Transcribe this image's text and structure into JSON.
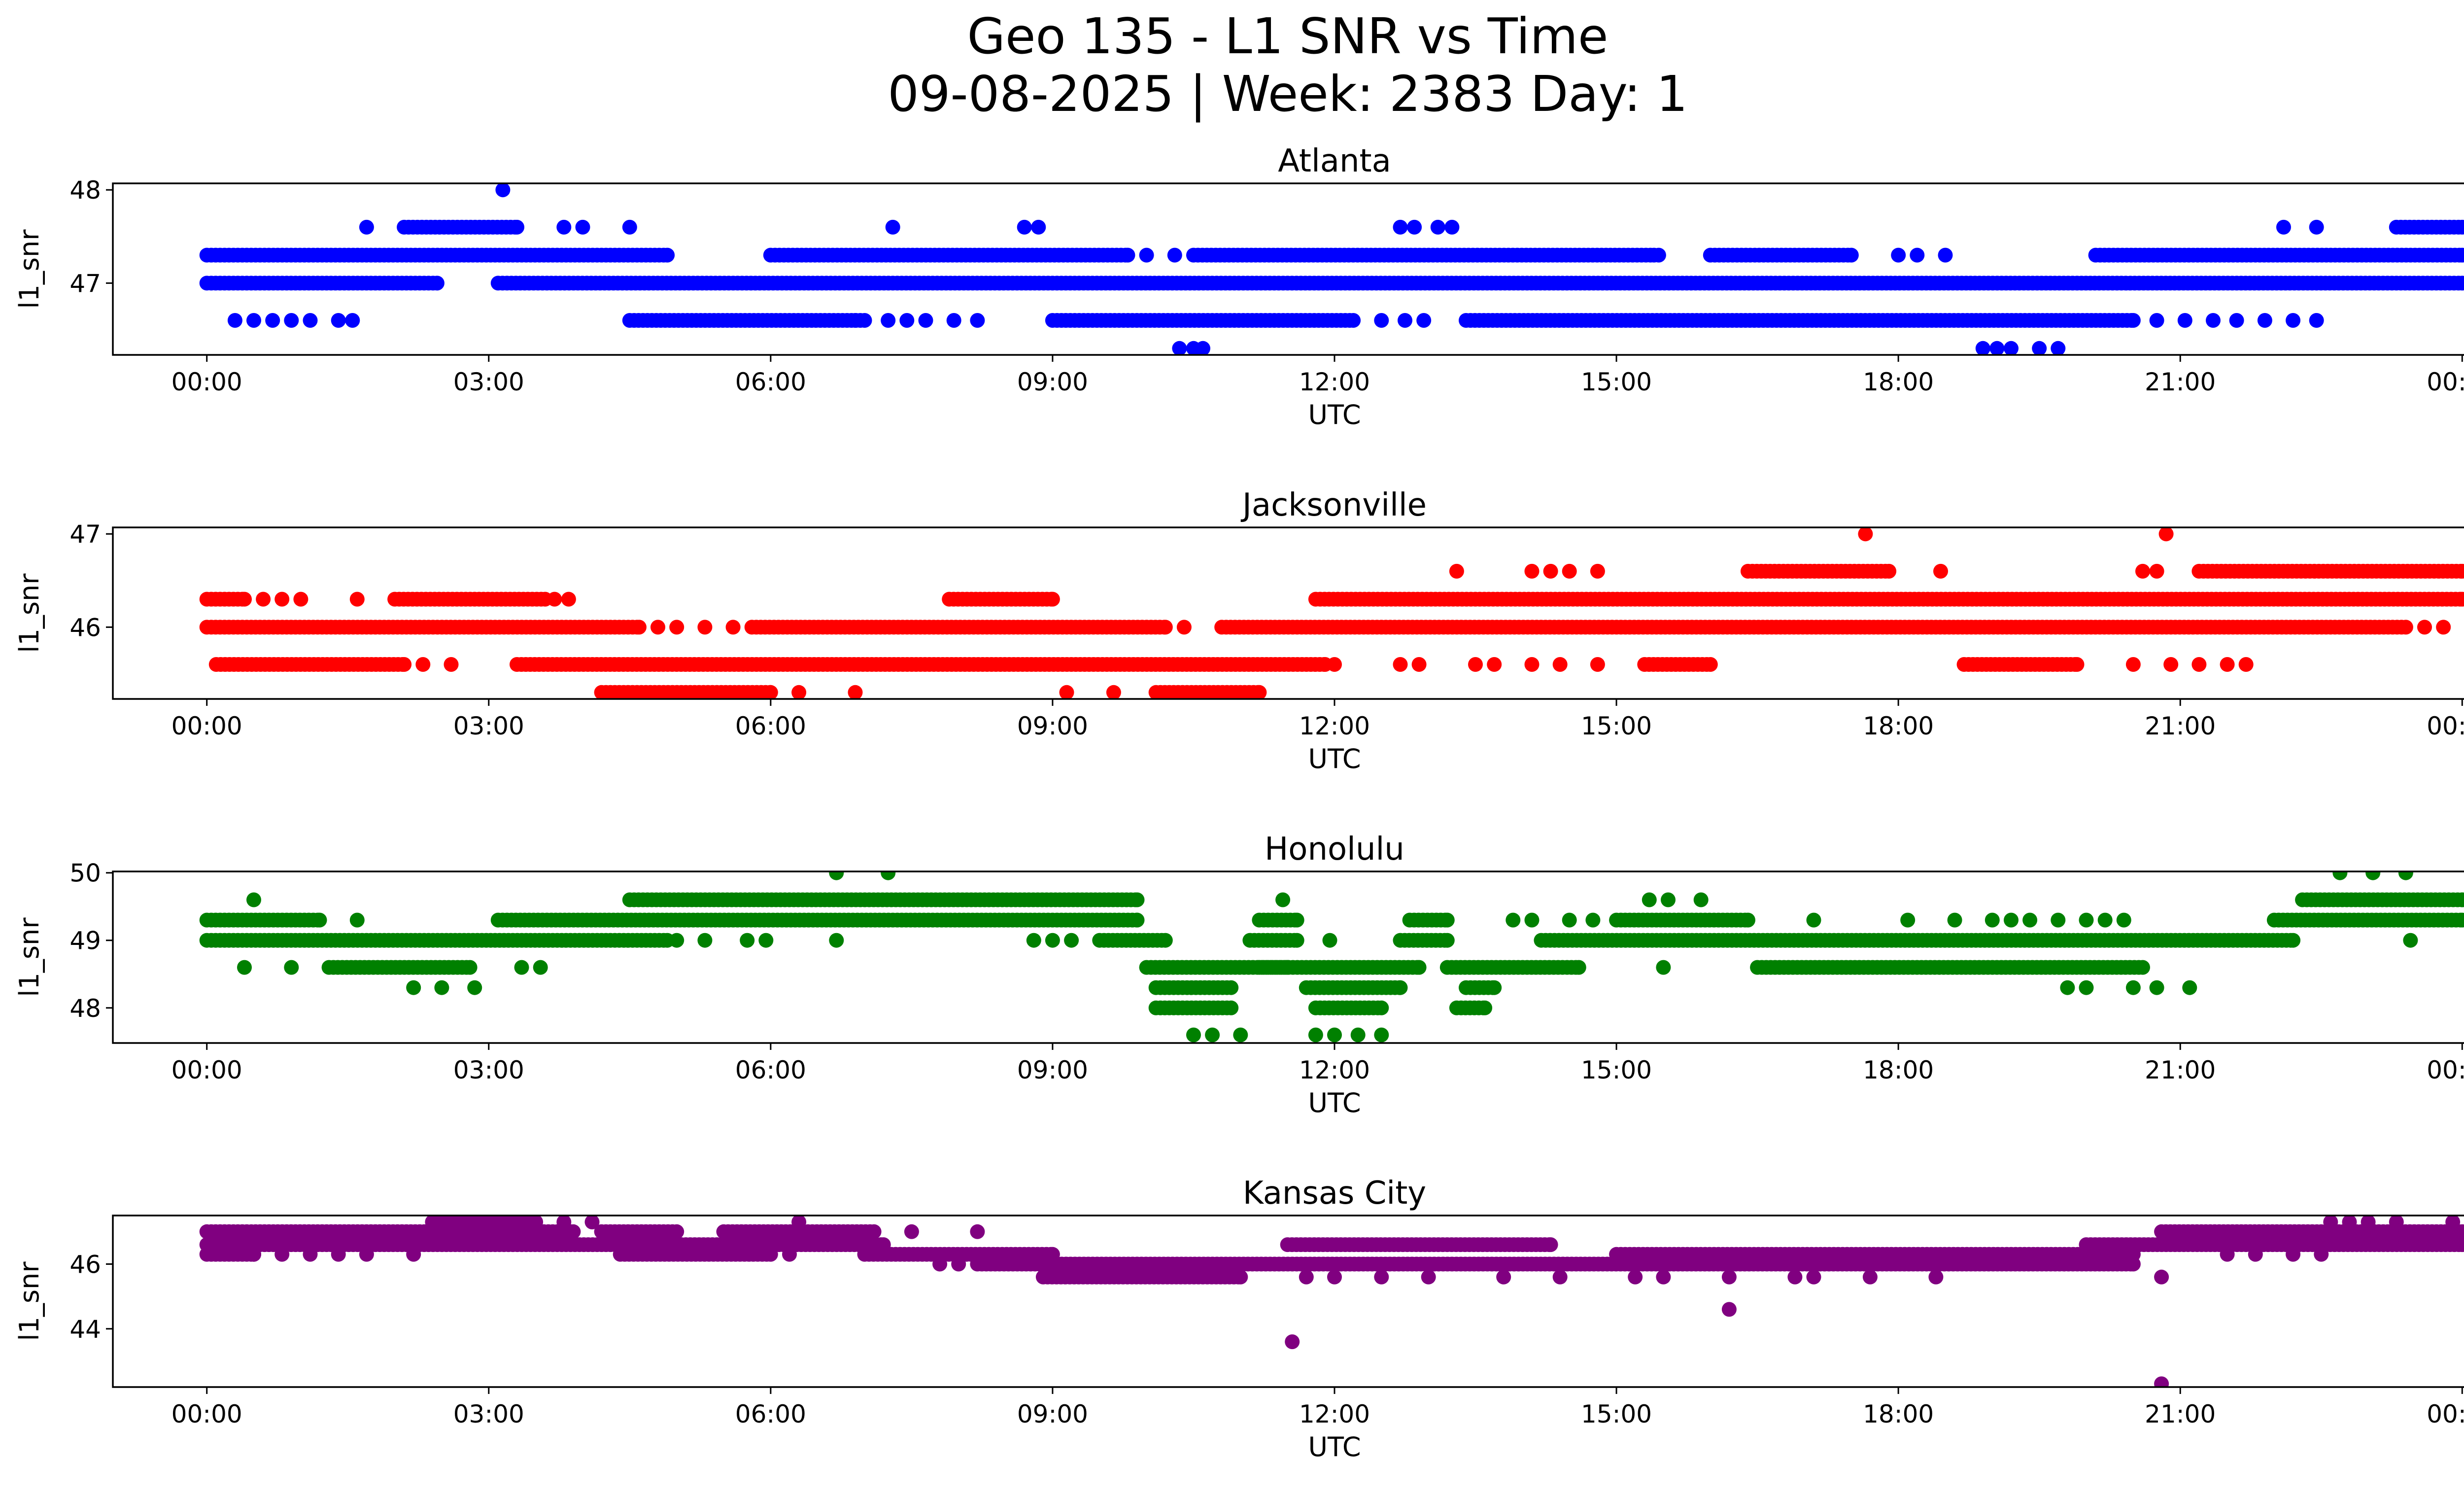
{
  "figure": {
    "title_line1": "Geo 135 - L1 SNR vs Time",
    "title_line2": "09-08-2025 | Week: 2383 Day: 1"
  },
  "chart_data": [
    {
      "type": "scatter",
      "title": "Atlanta",
      "xlabel": "UTC",
      "ylabel": "l1_snr",
      "color": "#0000ff",
      "xlim_hours": [
        -1.0,
        25.0
      ],
      "ylim": [
        46.23,
        48.07
      ],
      "x_ticks": [
        "00:00",
        "03:00",
        "06:00",
        "09:00",
        "12:00",
        "15:00",
        "18:00",
        "21:00",
        "00:00"
      ],
      "y_ticks": [
        47,
        48
      ],
      "levels": [
        46.3,
        46.6,
        47.0,
        47.3,
        47.6,
        48.0
      ],
      "bands": [
        {
          "y": 47.0,
          "ranges": [
            [
              0.0,
              2.45
            ],
            [
              3.1,
              24.0
            ]
          ]
        },
        {
          "y": 47.3,
          "ranges": [
            [
              0.0,
              4.9
            ],
            [
              6.0,
              9.8
            ],
            [
              10.5,
              15.4
            ],
            [
              16.0,
              17.5
            ],
            [
              20.1,
              24.0
            ]
          ]
        },
        {
          "y": 46.6,
          "ranges": [
            [
              4.5,
              7.0
            ],
            [
              9.0,
              12.2
            ],
            [
              13.4,
              20.5
            ]
          ]
        },
        {
          "y": 47.6,
          "ranges": [
            [
              2.1,
              3.3
            ],
            [
              23.3,
              24.0
            ]
          ]
        }
      ],
      "points": [
        [
          3.15,
          48.0
        ],
        [
          1.7,
          47.6
        ],
        [
          3.8,
          47.6
        ],
        [
          4.0,
          47.6
        ],
        [
          4.5,
          47.6
        ],
        [
          7.3,
          47.6
        ],
        [
          8.7,
          47.6
        ],
        [
          8.85,
          47.6
        ],
        [
          12.7,
          47.6
        ],
        [
          12.85,
          47.6
        ],
        [
          13.1,
          47.6
        ],
        [
          13.25,
          47.6
        ],
        [
          22.1,
          47.6
        ],
        [
          22.45,
          47.6
        ],
        [
          15.45,
          47.3
        ],
        [
          18.0,
          47.3
        ],
        [
          18.2,
          47.3
        ],
        [
          18.5,
          47.3
        ],
        [
          10.0,
          47.3
        ],
        [
          10.3,
          47.3
        ],
        [
          0.3,
          46.6
        ],
        [
          0.5,
          46.6
        ],
        [
          0.7,
          46.6
        ],
        [
          0.9,
          46.6
        ],
        [
          1.1,
          46.6
        ],
        [
          1.4,
          46.6
        ],
        [
          1.55,
          46.6
        ],
        [
          7.25,
          46.6
        ],
        [
          7.45,
          46.6
        ],
        [
          7.65,
          46.6
        ],
        [
          7.95,
          46.6
        ],
        [
          8.2,
          46.6
        ],
        [
          6.9,
          46.6
        ],
        [
          12.5,
          46.6
        ],
        [
          12.75,
          46.6
        ],
        [
          12.95,
          46.6
        ],
        [
          20.75,
          46.6
        ],
        [
          21.05,
          46.6
        ],
        [
          21.35,
          46.6
        ],
        [
          21.6,
          46.6
        ],
        [
          21.9,
          46.6
        ],
        [
          22.2,
          46.6
        ],
        [
          22.45,
          46.6
        ],
        [
          10.35,
          46.3
        ],
        [
          10.5,
          46.3
        ],
        [
          10.6,
          46.3
        ],
        [
          18.9,
          46.3
        ],
        [
          19.05,
          46.3
        ],
        [
          19.2,
          46.3
        ],
        [
          19.5,
          46.3
        ],
        [
          19.7,
          46.3
        ]
      ]
    },
    {
      "type": "scatter",
      "title": "Jacksonville",
      "xlabel": "UTC",
      "ylabel": "l1_snr",
      "color": "#ff0000",
      "xlim_hours": [
        -1.0,
        25.0
      ],
      "ylim": [
        45.23,
        47.07
      ],
      "x_ticks": [
        "00:00",
        "03:00",
        "06:00",
        "09:00",
        "12:00",
        "15:00",
        "18:00",
        "21:00",
        "00:00"
      ],
      "y_ticks": [
        46,
        47
      ],
      "levels": [
        45.3,
        45.6,
        46.0,
        46.3,
        46.6,
        47.0
      ],
      "bands": [
        {
          "y": 46.0,
          "ranges": [
            [
              0.0,
              4.6
            ],
            [
              5.8,
              10.2
            ],
            [
              10.8,
              23.4
            ]
          ]
        },
        {
          "y": 46.3,
          "ranges": [
            [
              0.0,
              0.4
            ],
            [
              2.0,
              3.6
            ],
            [
              7.9,
              9.0
            ],
            [
              11.8,
              24.0
            ]
          ]
        },
        {
          "y": 45.6,
          "ranges": [
            [
              0.1,
              2.1
            ],
            [
              3.3,
              11.9
            ],
            [
              15.3,
              16.0
            ],
            [
              18.7,
              19.9
            ]
          ]
        },
        {
          "y": 45.3,
          "ranges": [
            [
              4.2,
              6.0
            ],
            [
              10.1,
              11.2
            ]
          ]
        },
        {
          "y": 46.6,
          "ranges": [
            [
              16.4,
              17.9
            ],
            [
              21.2,
              24.0
            ]
          ]
        }
      ],
      "points": [
        [
          17.65,
          47.0
        ],
        [
          20.85,
          47.0
        ],
        [
          13.3,
          46.6
        ],
        [
          14.1,
          46.6
        ],
        [
          14.3,
          46.6
        ],
        [
          14.5,
          46.6
        ],
        [
          14.8,
          46.6
        ],
        [
          18.45,
          46.6
        ],
        [
          20.6,
          46.6
        ],
        [
          20.75,
          46.6
        ],
        [
          0.6,
          46.3
        ],
        [
          0.8,
          46.3
        ],
        [
          1.0,
          46.3
        ],
        [
          1.6,
          46.3
        ],
        [
          3.7,
          46.3
        ],
        [
          3.85,
          46.3
        ],
        [
          4.8,
          46.0
        ],
        [
          5.0,
          46.0
        ],
        [
          5.3,
          46.0
        ],
        [
          5.6,
          46.0
        ],
        [
          10.4,
          46.0
        ],
        [
          23.6,
          46.0
        ],
        [
          23.8,
          46.0
        ],
        [
          2.3,
          45.6
        ],
        [
          2.6,
          45.6
        ],
        [
          12.0,
          45.6
        ],
        [
          12.7,
          45.6
        ],
        [
          12.9,
          45.6
        ],
        [
          13.5,
          45.6
        ],
        [
          13.7,
          45.6
        ],
        [
          14.1,
          45.6
        ],
        [
          14.4,
          45.6
        ],
        [
          14.8,
          45.6
        ],
        [
          20.5,
          45.6
        ],
        [
          20.9,
          45.6
        ],
        [
          21.2,
          45.6
        ],
        [
          21.5,
          45.6
        ],
        [
          21.7,
          45.6
        ],
        [
          6.3,
          45.3
        ],
        [
          6.9,
          45.3
        ],
        [
          9.15,
          45.3
        ],
        [
          9.65,
          45.3
        ]
      ]
    },
    {
      "type": "scatter",
      "title": "Honolulu",
      "xlabel": "UTC",
      "ylabel": "l1_snr",
      "color": "#008000",
      "xlim_hours": [
        -1.0,
        25.0
      ],
      "ylim": [
        47.48,
        50.02
      ],
      "x_ticks": [
        "00:00",
        "03:00",
        "06:00",
        "09:00",
        "12:00",
        "15:00",
        "18:00",
        "21:00",
        "00:00"
      ],
      "y_ticks": [
        48,
        49,
        50
      ],
      "levels": [
        47.6,
        48.0,
        48.3,
        48.6,
        49.0,
        49.3,
        49.6,
        50.0
      ],
      "bands": [
        {
          "y": 49.0,
          "ranges": [
            [
              0.0,
              4.9
            ],
            [
              14.2,
              22.2
            ]
          ]
        },
        {
          "y": 49.3,
          "ranges": [
            [
              0.0,
              1.2
            ],
            [
              3.1,
              9.9
            ],
            [
              15.0,
              16.4
            ],
            [
              22.0,
              24.0
            ]
          ]
        },
        {
          "y": 49.6,
          "ranges": [
            [
              4.5,
              9.9
            ],
            [
              22.3,
              24.0
            ]
          ]
        },
        {
          "y": 48.6,
          "ranges": [
            [
              1.3,
              2.8
            ],
            [
              10.0,
              12.9
            ],
            [
              13.2,
              14.6
            ],
            [
              16.5,
              20.6
            ]
          ]
        },
        {
          "y": 48.3,
          "ranges": [
            [
              10.1,
              10.9
            ],
            [
              11.7,
              12.7
            ],
            [
              13.4,
              13.7
            ]
          ]
        },
        {
          "y": 48.0,
          "ranges": [
            [
              10.1,
              10.9
            ],
            [
              11.8,
              12.5
            ],
            [
              13.3,
              13.6
            ]
          ]
        },
        {
          "y": 48.6,
          "ranges": [
            [
              11.2,
              11.5
            ]
          ]
        },
        {
          "y": 49.0,
          "ranges": [
            [
              11.1,
              11.6
            ],
            [
              12.7,
              13.2
            ],
            [
              9.5,
              10.2
            ]
          ]
        },
        {
          "y": 49.3,
          "ranges": [
            [
              11.2,
              11.6
            ],
            [
              12.8,
              13.2
            ]
          ]
        }
      ],
      "points": [
        [
          6.7,
          50.0
        ],
        [
          7.25,
          50.0
        ],
        [
          22.7,
          50.0
        ],
        [
          23.05,
          50.0
        ],
        [
          23.4,
          50.0
        ],
        [
          0.5,
          49.6
        ],
        [
          11.45,
          49.6
        ],
        [
          15.35,
          49.6
        ],
        [
          15.55,
          49.6
        ],
        [
          15.9,
          49.6
        ],
        [
          1.6,
          49.3
        ],
        [
          13.9,
          49.3
        ],
        [
          14.1,
          49.3
        ],
        [
          14.5,
          49.3
        ],
        [
          14.75,
          49.3
        ],
        [
          17.1,
          49.3
        ],
        [
          18.1,
          49.3
        ],
        [
          18.6,
          49.3
        ],
        [
          19.0,
          49.3
        ],
        [
          19.2,
          49.3
        ],
        [
          19.4,
          49.3
        ],
        [
          19.7,
          49.3
        ],
        [
          20.0,
          49.3
        ],
        [
          20.2,
          49.3
        ],
        [
          20.4,
          49.3
        ],
        [
          5.0,
          49.0
        ],
        [
          5.3,
          49.0
        ],
        [
          5.75,
          49.0
        ],
        [
          5.95,
          49.0
        ],
        [
          6.7,
          49.0
        ],
        [
          8.8,
          49.0
        ],
        [
          9.0,
          49.0
        ],
        [
          9.2,
          49.0
        ],
        [
          11.95,
          49.0
        ],
        [
          23.45,
          49.0
        ],
        [
          0.4,
          48.6
        ],
        [
          0.9,
          48.6
        ],
        [
          3.35,
          48.6
        ],
        [
          3.55,
          48.6
        ],
        [
          15.5,
          48.6
        ],
        [
          2.2,
          48.3
        ],
        [
          2.5,
          48.3
        ],
        [
          2.85,
          48.3
        ],
        [
          19.8,
          48.3
        ],
        [
          20.0,
          48.3
        ],
        [
          20.5,
          48.3
        ],
        [
          20.75,
          48.3
        ],
        [
          21.1,
          48.3
        ],
        [
          10.5,
          47.6
        ],
        [
          10.7,
          47.6
        ],
        [
          11.0,
          47.6
        ],
        [
          11.8,
          47.6
        ],
        [
          12.0,
          47.6
        ],
        [
          12.25,
          47.6
        ],
        [
          12.5,
          47.6
        ]
      ]
    },
    {
      "type": "scatter",
      "title": "Kansas City",
      "xlabel": "UTC",
      "ylabel": "l1_snr",
      "color": "#800080",
      "xlim_hours": [
        -1.0,
        25.0
      ],
      "ylim": [
        42.2,
        47.5
      ],
      "x_ticks": [
        "00:00",
        "03:00",
        "06:00",
        "09:00",
        "12:00",
        "15:00",
        "18:00",
        "21:00",
        "00:00"
      ],
      "y_ticks": [
        44,
        46
      ],
      "levels": [
        42.3,
        43.6,
        44.6,
        45.6,
        46.0,
        46.3,
        46.6,
        47.0,
        47.3
      ],
      "bands": [
        {
          "y": 46.6,
          "ranges": [
            [
              0.0,
              7.2
            ],
            [
              11.5,
              14.3
            ],
            [
              20.0,
              24.0
            ]
          ]
        },
        {
          "y": 47.0,
          "ranges": [
            [
              0.0,
              3.9
            ],
            [
              4.2,
              5.0
            ],
            [
              5.5,
              7.1
            ],
            [
              20.8,
              24.0
            ]
          ]
        },
        {
          "y": 46.3,
          "ranges": [
            [
              0.0,
              0.5
            ],
            [
              4.4,
              6.0
            ],
            [
              7.0,
              9.0
            ],
            [
              15.0,
              20.5
            ]
          ]
        },
        {
          "y": 46.0,
          "ranges": [
            [
              8.2,
              20.5
            ]
          ]
        },
        {
          "y": 45.6,
          "ranges": [
            [
              8.9,
              11.0
            ]
          ]
        },
        {
          "y": 47.3,
          "ranges": [
            [
              2.4,
              3.5
            ]
          ]
        }
      ],
      "points": [
        [
          3.8,
          47.3
        ],
        [
          4.1,
          47.3
        ],
        [
          6.3,
          47.3
        ],
        [
          22.6,
          47.3
        ],
        [
          22.8,
          47.3
        ],
        [
          23.0,
          47.3
        ],
        [
          23.3,
          47.3
        ],
        [
          23.9,
          47.3
        ],
        [
          7.5,
          47.0
        ],
        [
          8.2,
          47.0
        ],
        [
          0.5,
          46.3
        ],
        [
          0.8,
          46.3
        ],
        [
          1.1,
          46.3
        ],
        [
          1.4,
          46.3
        ],
        [
          1.7,
          46.3
        ],
        [
          2.2,
          46.3
        ],
        [
          6.2,
          46.3
        ],
        [
          21.5,
          46.3
        ],
        [
          21.8,
          46.3
        ],
        [
          22.2,
          46.3
        ],
        [
          22.5,
          46.3
        ],
        [
          7.8,
          46.0
        ],
        [
          8.0,
          46.0
        ],
        [
          12.0,
          45.6
        ],
        [
          12.5,
          45.6
        ],
        [
          14.4,
          45.6
        ],
        [
          15.2,
          45.6
        ],
        [
          15.5,
          45.6
        ],
        [
          16.2,
          45.6
        ],
        [
          16.9,
          45.6
        ],
        [
          17.1,
          45.6
        ],
        [
          17.7,
          45.6
        ],
        [
          18.4,
          45.6
        ],
        [
          20.8,
          45.6
        ],
        [
          11.7,
          45.6
        ],
        [
          13.0,
          45.6
        ],
        [
          13.8,
          45.6
        ],
        [
          16.2,
          44.6
        ],
        [
          11.55,
          43.6
        ],
        [
          20.8,
          42.3
        ]
      ]
    }
  ]
}
